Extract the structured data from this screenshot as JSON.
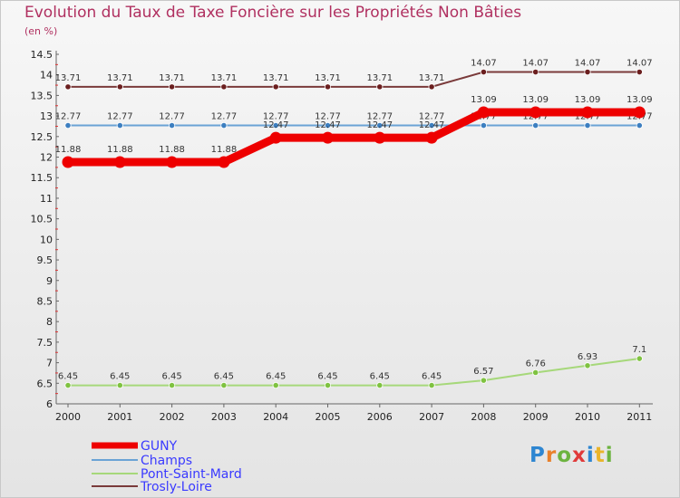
{
  "title": "Evolution du Taux de Taxe Foncière sur les Propriétés Non Bâties",
  "subtitle": "(en %)",
  "logo": "Proxiti",
  "chart_data": {
    "type": "line",
    "title": "Evolution du Taux de Taxe Foncière sur les Propriétés Non Bâties",
    "ylabel": "(en %)",
    "xlabel": "",
    "ylim": [
      6,
      14.5
    ],
    "y_ticks": [
      6,
      6.5,
      7,
      7.5,
      8,
      8.5,
      9,
      9.5,
      10,
      10.5,
      11,
      11.5,
      12,
      12.5,
      13,
      13.5,
      14,
      14.5
    ],
    "y_tick_labels": [
      "6",
      "6.5",
      "7",
      "7.5",
      "8",
      "8.5",
      "9",
      "9.5",
      "10",
      "10.5",
      "11",
      "11.5",
      "12",
      "12.5",
      "13",
      "13.5",
      "14",
      "14.5"
    ],
    "categories": [
      "2000",
      "2001",
      "2002",
      "2003",
      "2004",
      "2005",
      "2006",
      "2007",
      "2008",
      "2009",
      "2010",
      "2011"
    ],
    "series": [
      {
        "name": "GUNY",
        "color": "#ee0000",
        "values": [
          11.88,
          11.88,
          11.88,
          11.88,
          12.47,
          12.47,
          12.47,
          12.47,
          13.09,
          13.09,
          13.09,
          13.09
        ],
        "labels": [
          "11.88",
          "11.88",
          "11.88",
          "11.88",
          "12.47",
          "12.47",
          "12.47",
          "12.47",
          "13.09",
          "13.09",
          "13.09",
          "13.09"
        ]
      },
      {
        "name": "Champs",
        "color": "#6aa3d5",
        "marker_color": "#3d7fc0",
        "values": [
          12.77,
          12.77,
          12.77,
          12.77,
          12.77,
          12.77,
          12.77,
          12.77,
          12.77,
          12.77,
          12.77,
          12.77
        ],
        "labels": [
          "12.77",
          "12.77",
          "12.77",
          "12.77",
          "12.77",
          "12.77",
          "12.77",
          "12.77",
          "12.77",
          "12.77",
          "12.77",
          "12.77"
        ]
      },
      {
        "name": "Pont-Saint-Mard",
        "color": "#a6d87a",
        "marker_color": "#7fc241",
        "values": [
          6.45,
          6.45,
          6.45,
          6.45,
          6.45,
          6.45,
          6.45,
          6.45,
          6.57,
          6.76,
          6.93,
          7.1
        ],
        "labels": [
          "6.45",
          "6.45",
          "6.45",
          "6.45",
          "6.45",
          "6.45",
          "6.45",
          "6.45",
          "6.57",
          "6.76",
          "6.93",
          "7.1"
        ]
      },
      {
        "name": "Trosly-Loire",
        "color": "#7a3a3a",
        "marker_color": "#6b1f1f",
        "values": [
          13.71,
          13.71,
          13.71,
          13.71,
          13.71,
          13.71,
          13.71,
          13.71,
          14.07,
          14.07,
          14.07,
          14.07
        ],
        "labels": [
          "13.71",
          "13.71",
          "13.71",
          "13.71",
          "13.71",
          "13.71",
          "13.71",
          "13.71",
          "14.07",
          "14.07",
          "14.07",
          "14.07"
        ]
      }
    ],
    "legend": {
      "placement": "bottom-left",
      "entries": [
        "GUNY",
        "Champs",
        "Pont-Saint-Mard",
        "Trosly-Loire"
      ]
    }
  }
}
